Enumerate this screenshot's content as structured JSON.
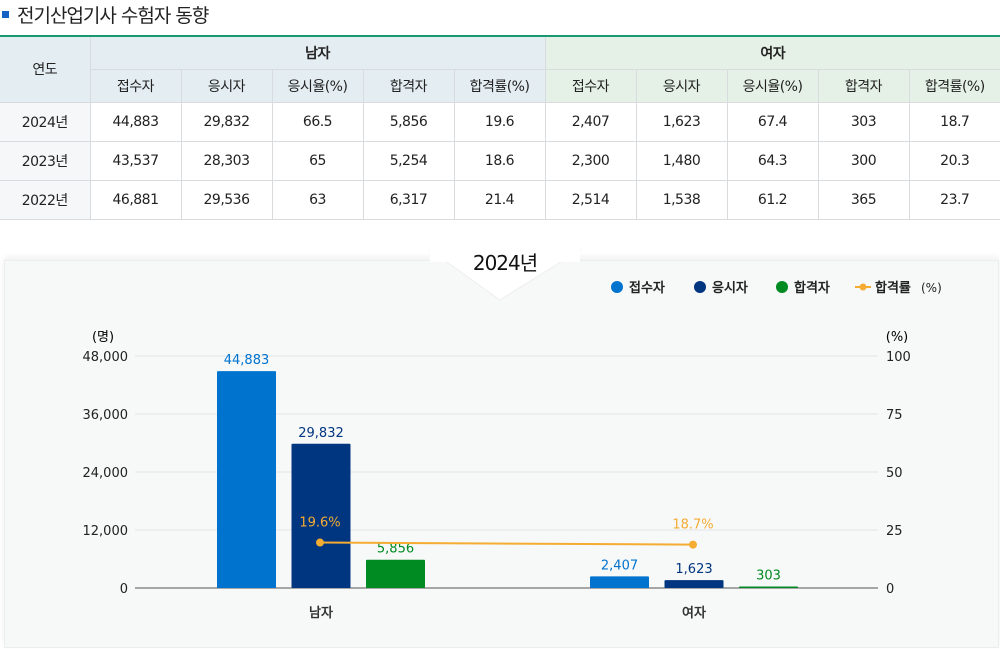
{
  "title": "전기산업기사 수험자 동향",
  "table": {
    "year_header": "연도",
    "groups": [
      "남자",
      "여자"
    ],
    "columns": [
      "접수자",
      "응시자",
      "응시율(%)",
      "합격자",
      "합격률(%)",
      "접수자",
      "응시자",
      "응시율(%)",
      "합격자",
      "합격률(%)"
    ],
    "rows": [
      {
        "year": "2024년",
        "cells": [
          "44,883",
          "29,832",
          "66.5",
          "5,856",
          "19.6",
          "2,407",
          "1,623",
          "67.4",
          "303",
          "18.7"
        ]
      },
      {
        "year": "2023년",
        "cells": [
          "43,537",
          "28,303",
          "65",
          "5,254",
          "18.6",
          "2,300",
          "1,480",
          "64.3",
          "300",
          "20.3"
        ]
      },
      {
        "year": "2022년",
        "cells": [
          "46,881",
          "29,536",
          "63",
          "6,317",
          "21.4",
          "2,514",
          "1,538",
          "61.2",
          "365",
          "23.7"
        ]
      }
    ]
  },
  "chart_data": {
    "type": "bar",
    "title": "2024년",
    "categories": [
      "남자",
      "여자"
    ],
    "series": [
      {
        "name": "접수자",
        "values": [
          44883,
          2407
        ],
        "labels": [
          "44,883",
          "2,407"
        ],
        "color": "#0073cf",
        "axis": "left"
      },
      {
        "name": "응시자",
        "values": [
          29832,
          1623
        ],
        "labels": [
          "29,832",
          "1,623"
        ],
        "color": "#003580",
        "axis": "left"
      },
      {
        "name": "합격자",
        "values": [
          5856,
          303
        ],
        "labels": [
          "5,856",
          "303"
        ],
        "color": "#008a22",
        "axis": "left"
      },
      {
        "name": "합격률",
        "type": "line",
        "values": [
          19.6,
          18.7
        ],
        "labels": [
          "19.6%",
          "18.7%"
        ],
        "color": "#f5ac32",
        "axis": "right"
      }
    ],
    "legend_suffix": "(%)",
    "ylabel_left": "(명)",
    "ylabel_right": "(%)",
    "ylim_left": [
      0,
      48000
    ],
    "yticks_left": [
      "0",
      "12,000",
      "24,000",
      "36,000",
      "48,000"
    ],
    "ylim_right": [
      0,
      100
    ],
    "yticks_right": [
      "0",
      "25",
      "50",
      "75",
      "100"
    ],
    "grid": true,
    "legend": "top-right"
  }
}
